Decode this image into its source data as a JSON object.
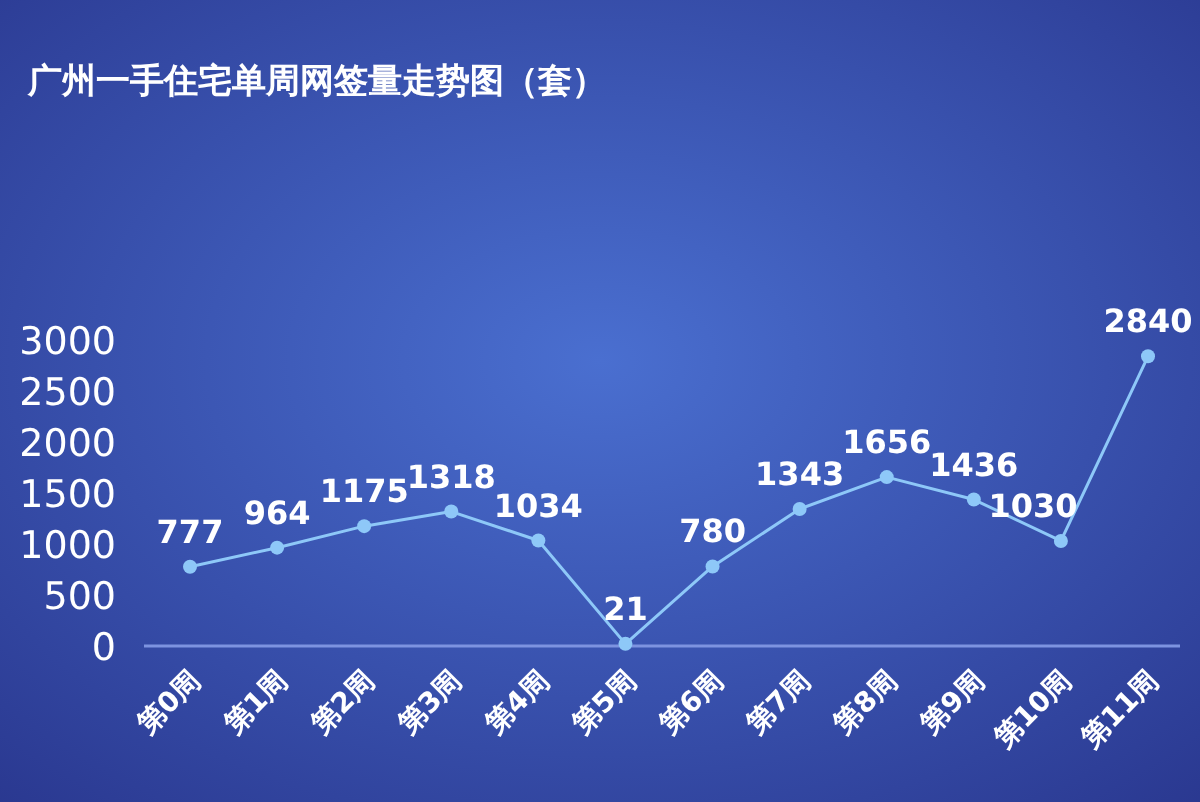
{
  "chart_data": {
    "type": "line",
    "title": "广州一手住宅单周网签量走势图（套）",
    "categories": [
      "第0周",
      "第1周",
      "第2周",
      "第3周",
      "第4周",
      "第5周",
      "第6周",
      "第7周",
      "第8周",
      "第9周",
      "第10周",
      "第11周"
    ],
    "series": [
      {
        "color": "#8ec8f8",
        "values": [
          777,
          964,
          1175,
          1318,
          1034,
          21,
          780,
          1343,
          1656,
          1436,
          1030,
          2840
        ]
      }
    ],
    "ylim": [
      0,
      3000
    ],
    "yticks": [
      0,
      500,
      1000,
      1500,
      2000,
      2500,
      3000
    ],
    "data_labels": true,
    "marker": "circle",
    "grid": false
  }
}
